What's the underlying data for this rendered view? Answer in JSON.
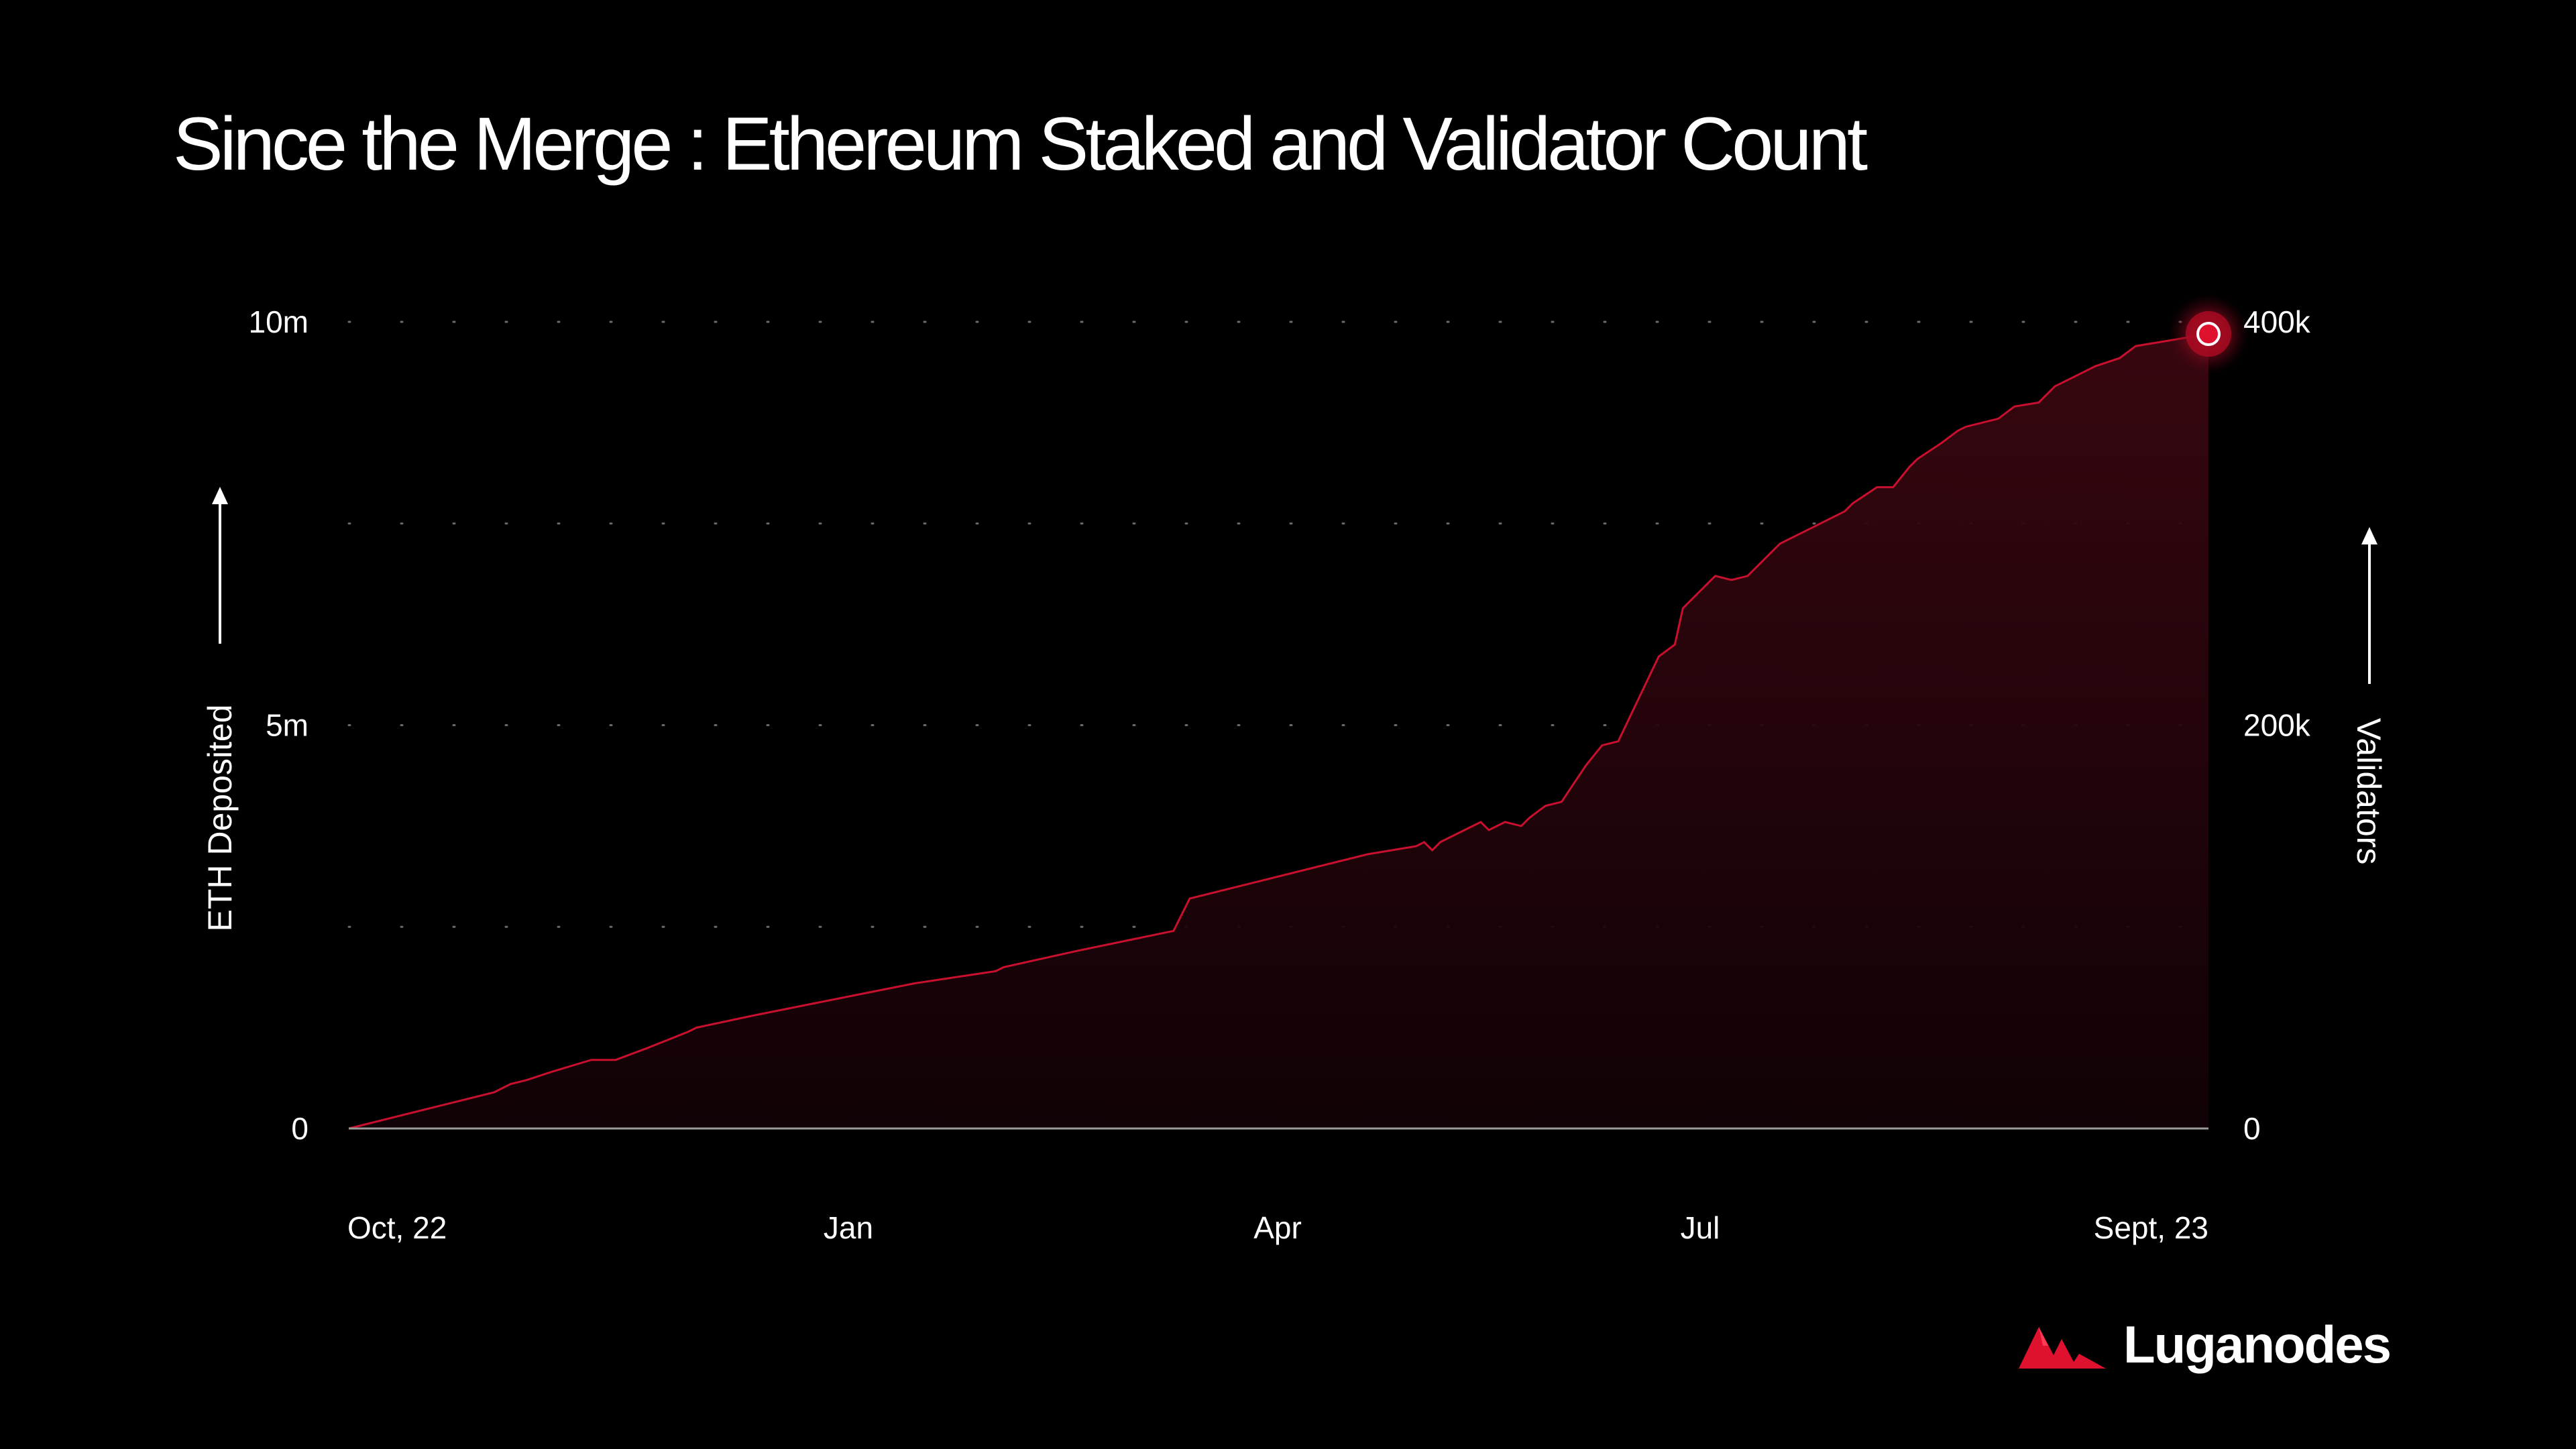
{
  "title": "Since the Merge : Ethereum Staked and Validator Count",
  "brand": {
    "name": "Luganodes",
    "color": "#e0102f"
  },
  "chart_data": {
    "type": "area",
    "title": "Since the Merge : Ethereum Staked and Validator Count",
    "ylabel": "ETH Deposited",
    "y2label": "Validators",
    "x_ticks": [
      "Oct, 22",
      "Jan",
      "Apr",
      "Jul",
      "Sept, 23"
    ],
    "y_ticks": [
      "0",
      "5m",
      "10m"
    ],
    "y2_ticks": [
      "0",
      "200k",
      "400k"
    ],
    "ylim": [
      0,
      10000000
    ],
    "y2lim": [
      0,
      400000
    ],
    "xlim": [
      0,
      11.5
    ],
    "grid": "dotted-horizontal",
    "legend": "none",
    "colors": {
      "line": "#c8102e",
      "fill": "#3a0a10",
      "background": "#000000"
    },
    "series": [
      {
        "x": [
          0,
          0.9,
          1.0,
          1.1,
          1.25,
          1.5,
          1.65,
          1.85,
          2.1,
          2.15,
          2.5,
          3.0,
          3.5,
          4.0,
          4.05,
          4.5,
          5.1,
          5.2,
          5.6,
          6.0,
          6.3,
          6.6,
          6.65,
          6.7,
          6.75,
          6.85,
          6.95,
          7.0,
          7.05,
          7.15,
          7.25,
          7.3,
          7.4,
          7.5,
          7.55,
          7.65,
          7.75,
          7.85,
          8.1,
          8.2,
          8.25,
          8.3,
          8.35,
          8.45,
          8.55,
          8.65,
          8.8,
          8.85,
          8.95,
          9.05,
          9.15,
          9.25,
          9.3,
          9.45,
          9.55,
          9.65,
          9.7,
          9.85,
          9.95,
          10.0,
          10.2,
          10.3,
          10.45,
          10.55,
          10.7,
          10.8,
          10.95,
          11.05,
          11.2,
          11.35,
          11.5
        ],
        "y": [
          0,
          450000,
          550000,
          600000,
          700000,
          850000,
          850000,
          1000000,
          1200000,
          1250000,
          1400000,
          1600000,
          1800000,
          1950000,
          2000000,
          2200000,
          2450000,
          2850000,
          3050000,
          3250000,
          3400000,
          3500000,
          3550000,
          3450000,
          3550000,
          3650000,
          3750000,
          3800000,
          3700000,
          3800000,
          3750000,
          3850000,
          4000000,
          4050000,
          4200000,
          4500000,
          4750000,
          4800000,
          5850000,
          6000000,
          6450000,
          6550000,
          6650000,
          6850000,
          6800000,
          6850000,
          7150000,
          7250000,
          7350000,
          7450000,
          7550000,
          7650000,
          7750000,
          7950000,
          7950000,
          8200000,
          8300000,
          8500000,
          8650000,
          8700000,
          8800000,
          8950000,
          9000000,
          9200000,
          9350000,
          9450000,
          9550000,
          9700000,
          9750000,
          9800000,
          9850000
        ]
      }
    ],
    "highlight_point": {
      "x": 11.5,
      "y": 9850000
    }
  }
}
